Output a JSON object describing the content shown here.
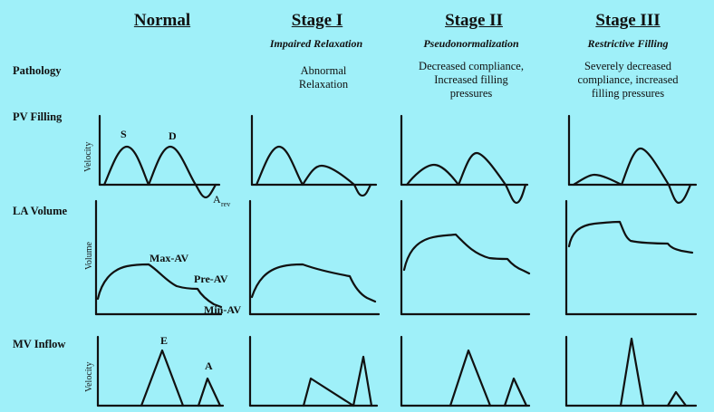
{
  "columns": [
    {
      "title": "Normal",
      "subtitle": "",
      "pathology": ""
    },
    {
      "title": "Stage I",
      "subtitle": "Impaired Relaxation",
      "pathology": "Abnormal\nRelaxation"
    },
    {
      "title": "Stage II",
      "subtitle": "Pseudonormalization",
      "pathology": "Decreased compliance,\nIncreased filling\npressures"
    },
    {
      "title": "Stage III",
      "subtitle": "Restrictive Filling",
      "pathology": "Severely decreased\ncompliance, increased\nfilling pressures"
    }
  ],
  "rows": {
    "pathology": "Pathology",
    "pv_filling": "PV Filling",
    "la_volume": "LA Volume",
    "mv_inflow": "MV Inflow"
  },
  "axis_labels": {
    "pv_velocity": "Velocity",
    "la_volume": "Volume",
    "mv_velocity": "Velocity"
  },
  "annotations": {
    "s_wave": "S",
    "d_wave": "D",
    "a_rev_base": "A",
    "a_rev_sub": "rev",
    "max_av": "Max-AV",
    "pre_av": "Pre-AV",
    "min_av": "Min-AV",
    "e_wave": "E",
    "a_wave": "A"
  },
  "colors": {
    "background": "#9ff0f9",
    "stroke": "#111111"
  }
}
